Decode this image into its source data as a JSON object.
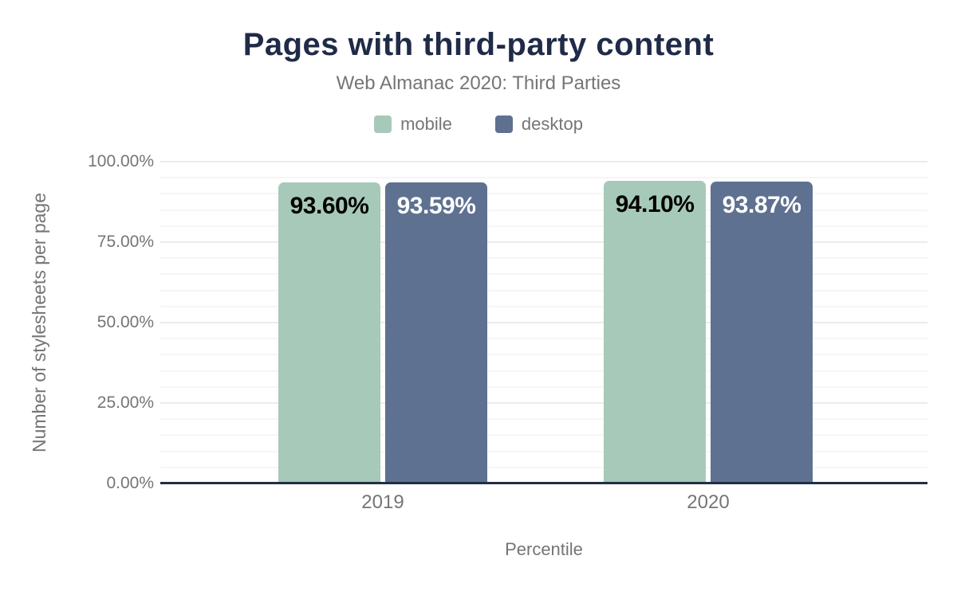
{
  "chart_data": {
    "type": "bar",
    "title": "Pages with third-party content",
    "subtitle": "Web Almanac 2020: Third Parties",
    "xlabel": "Percentile",
    "ylabel": "Number of stylesheets per page",
    "categories": [
      "2019",
      "2020"
    ],
    "series": [
      {
        "name": "mobile",
        "color": "#a7c9b9",
        "label_text_color": "#000000",
        "values": [
          93.6,
          94.1
        ],
        "data_labels": [
          "93.60%",
          "94.10%"
        ]
      },
      {
        "name": "desktop",
        "color": "#5f7190",
        "label_text_color": "#ffffff",
        "values": [
          93.59,
          93.87
        ],
        "data_labels": [
          "93.59%",
          "93.87%"
        ]
      }
    ],
    "ylim": [
      0,
      100
    ],
    "yticks": [
      {
        "value": 0,
        "label": "0.00%"
      },
      {
        "value": 25,
        "label": "25.00%"
      },
      {
        "value": 50,
        "label": "50.00%"
      },
      {
        "value": 75,
        "label": "75.00%"
      },
      {
        "value": 100,
        "label": "100.00%"
      }
    ],
    "grid": {
      "show": true,
      "minor_step": 5,
      "major_step": 25
    },
    "legend_position": "top",
    "colors": {
      "title": "#1f2b47",
      "axis_line": "#222e44",
      "text_muted": "#757575",
      "background": "#ffffff"
    }
  }
}
